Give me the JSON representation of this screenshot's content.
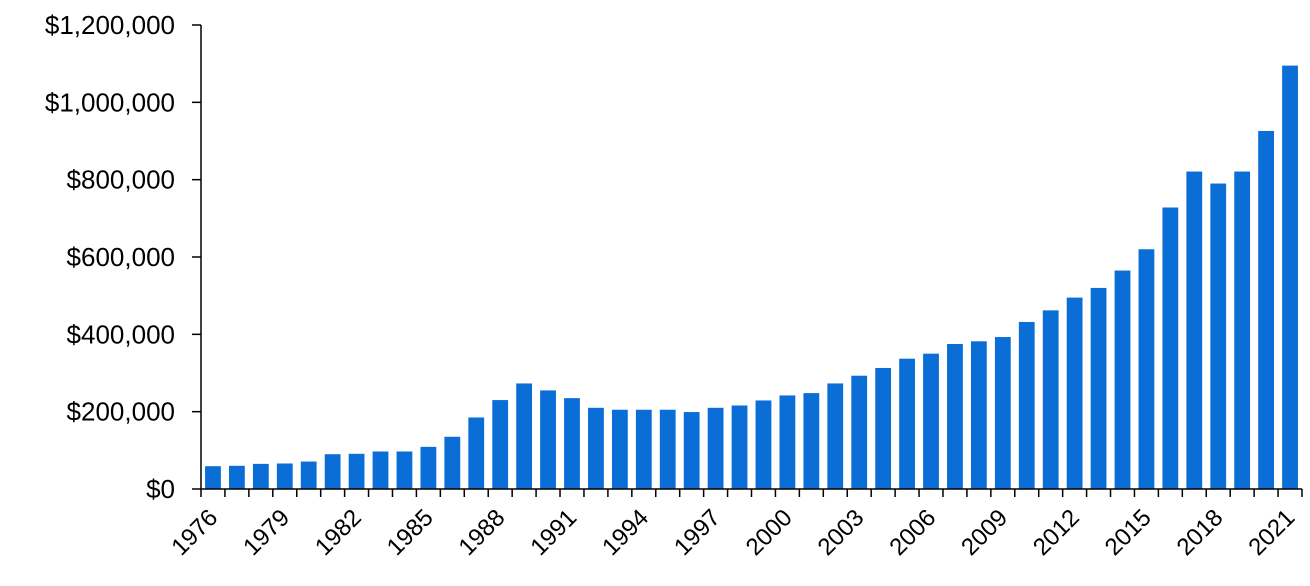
{
  "chart_data": {
    "type": "bar",
    "title": "",
    "xlabel": "",
    "ylabel": "",
    "categories": [
      "1976",
      "1977",
      "1978",
      "1979",
      "1980",
      "1981",
      "1982",
      "1983",
      "1984",
      "1985",
      "1986",
      "1987",
      "1988",
      "1989",
      "1990",
      "1991",
      "1992",
      "1993",
      "1994",
      "1995",
      "1996",
      "1997",
      "1998",
      "1999",
      "2000",
      "2001",
      "2002",
      "2003",
      "2004",
      "2005",
      "2006",
      "2007",
      "2008",
      "2009",
      "2010",
      "2011",
      "2012",
      "2013",
      "2014",
      "2015",
      "2016",
      "2017",
      "2018",
      "2019",
      "2020",
      "2021"
    ],
    "x_tick_labels": [
      "1976",
      "1979",
      "1982",
      "1985",
      "1988",
      "1991",
      "1994",
      "1997",
      "2000",
      "2003",
      "2006",
      "2009",
      "2012",
      "2015",
      "2018",
      "2021"
    ],
    "series": [
      {
        "values": [
          59000,
          60000,
          65000,
          66000,
          71000,
          90000,
          91000,
          97000,
          97000,
          109000,
          135000,
          185000,
          230000,
          273000,
          255000,
          235000,
          210000,
          205000,
          205000,
          205000,
          199000,
          210000,
          216000,
          229000,
          242000,
          248000,
          273000,
          293000,
          313000,
          337000,
          350000,
          375000,
          382000,
          393000,
          432000,
          462000,
          495000,
          520000,
          565000,
          620000,
          728000,
          821000,
          790000,
          821000,
          926000,
          1095000
        ]
      }
    ],
    "ylim": [
      0,
      1200000
    ],
    "y_ticks": [
      0,
      200000,
      400000,
      600000,
      800000,
      1000000,
      1200000
    ],
    "y_tick_labels": [
      "$0",
      "$200,000",
      "$400,000",
      "$600,000",
      "$800,000",
      "$1,000,000",
      "$1,200,000"
    ],
    "grid": false,
    "legend": "none",
    "colors": {
      "bar": "#0A6ED6",
      "axis": "#000000"
    }
  }
}
